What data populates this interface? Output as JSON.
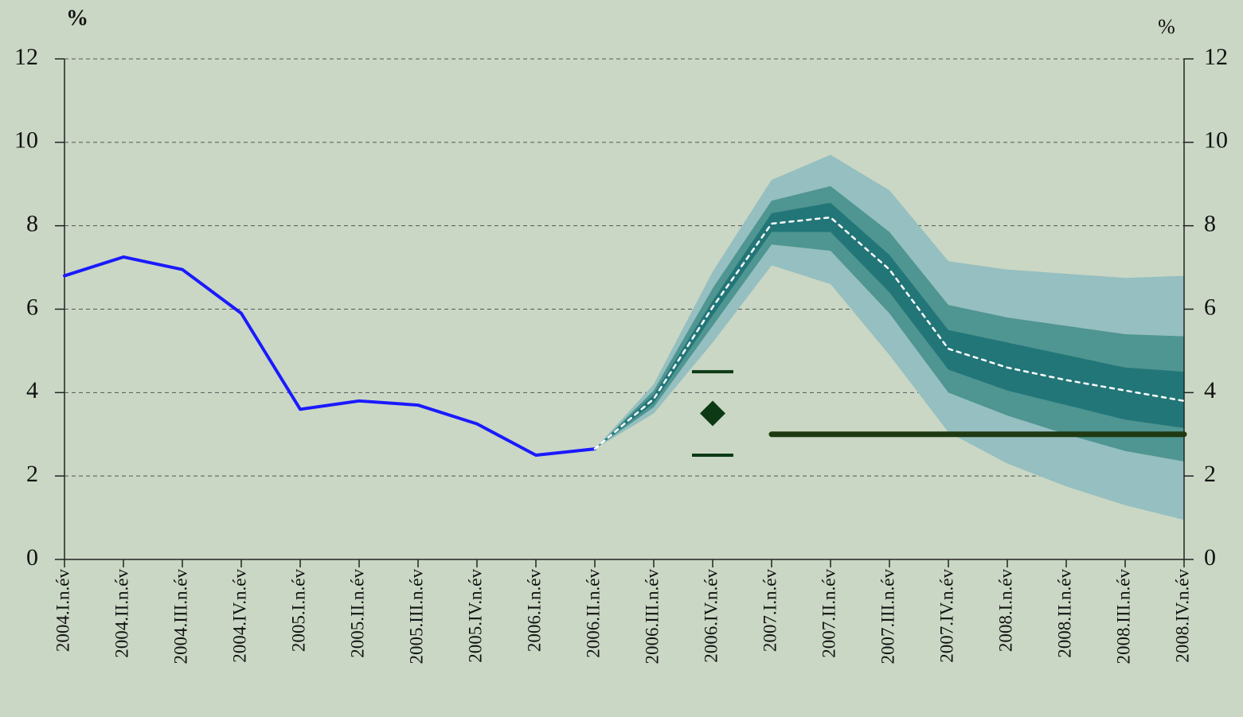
{
  "chart_data": {
    "type": "fan",
    "y_label": "%",
    "y2_label": "%",
    "categories": [
      "2004.I.n.év",
      "2004.II.n.év",
      "2004.III.n.év",
      "2004.IV.n.év",
      "2005.I.n.év",
      "2005.II.n.év",
      "2005.III.n.év",
      "2005.IV.n.év",
      "2006.I.n.év",
      "2006.II.n.év",
      "2006.III.n.év",
      "2006.IV.n.év",
      "2007.I.n.év",
      "2007.II.n.év",
      "2007.III.n.év",
      "2007.IV.n.év",
      "2008.I.n.év",
      "2008.II.n.év",
      "2008.III.n.év",
      "2008.IV.n.év"
    ],
    "ylim": [
      0,
      12
    ],
    "yticks": [
      0,
      2,
      4,
      6,
      8,
      10,
      12
    ],
    "y2lim": [
      0,
      12
    ],
    "y2ticks": [
      0,
      2,
      4,
      6,
      8,
      10,
      12
    ],
    "grid": true,
    "bands": [
      {
        "color": "#95bfc0",
        "lower": [
          null,
          null,
          null,
          null,
          null,
          null,
          null,
          null,
          null,
          2.65,
          3.5,
          5.2,
          7.05,
          6.6,
          4.9,
          3.05,
          2.3,
          1.75,
          1.3,
          0.95
        ],
        "upper": [
          null,
          null,
          null,
          null,
          null,
          null,
          null,
          null,
          null,
          2.65,
          4.2,
          6.9,
          9.1,
          9.7,
          8.85,
          7.15,
          6.95,
          6.85,
          6.75,
          6.8
        ]
      },
      {
        "color": "#4f9591",
        "lower": [
          null,
          null,
          null,
          null,
          null,
          null,
          null,
          null,
          null,
          2.65,
          3.65,
          5.6,
          7.55,
          7.4,
          5.9,
          4.0,
          3.45,
          3.0,
          2.6,
          2.35
        ],
        "upper": [
          null,
          null,
          null,
          null,
          null,
          null,
          null,
          null,
          null,
          2.65,
          4.05,
          6.5,
          8.6,
          8.95,
          7.85,
          6.1,
          5.8,
          5.6,
          5.4,
          5.35
        ]
      },
      {
        "color": "#237678",
        "lower": [
          null,
          null,
          null,
          null,
          null,
          null,
          null,
          null,
          null,
          2.65,
          3.75,
          5.85,
          7.85,
          7.85,
          6.4,
          4.55,
          4.05,
          3.7,
          3.35,
          3.15
        ],
        "upper": [
          null,
          null,
          null,
          null,
          null,
          null,
          null,
          null,
          null,
          2.65,
          3.95,
          6.2,
          8.3,
          8.55,
          7.3,
          5.5,
          5.2,
          4.9,
          4.6,
          4.5
        ]
      }
    ],
    "series": [
      {
        "color": "#1a1aff",
        "style": "solid",
        "values": [
          6.8,
          7.25,
          6.95,
          5.9,
          3.6,
          3.8,
          3.7,
          3.25,
          2.5,
          2.65,
          null,
          null,
          null,
          null,
          null,
          null,
          null,
          null,
          null,
          null
        ]
      },
      {
        "color": "#ffffff",
        "style": "dotted",
        "values": [
          null,
          null,
          null,
          null,
          null,
          null,
          null,
          null,
          null,
          2.65,
          3.85,
          6.05,
          8.05,
          8.2,
          6.95,
          5.05,
          4.6,
          4.3,
          4.05,
          3.8
        ]
      },
      {
        "color": "#1f3a12",
        "style": "thick",
        "values": [
          null,
          null,
          null,
          null,
          null,
          null,
          null,
          null,
          null,
          null,
          null,
          null,
          3,
          3,
          3,
          3,
          3,
          3,
          3,
          3
        ]
      }
    ],
    "target": {
      "color": "#0d3a15",
      "values": [
        null,
        null,
        null,
        null,
        null,
        null,
        null,
        null,
        null,
        null,
        null,
        3.5,
        null,
        null,
        null,
        null,
        null,
        null,
        null,
        null
      ],
      "lower": [
        null,
        null,
        null,
        null,
        null,
        null,
        null,
        null,
        null,
        null,
        null,
        2.5,
        null,
        null,
        null,
        null,
        null,
        null,
        null,
        null
      ],
      "upper": [
        null,
        null,
        null,
        null,
        null,
        null,
        null,
        null,
        null,
        null,
        null,
        4.5,
        null,
        null,
        null,
        null,
        null,
        null,
        null,
        null
      ]
    }
  }
}
